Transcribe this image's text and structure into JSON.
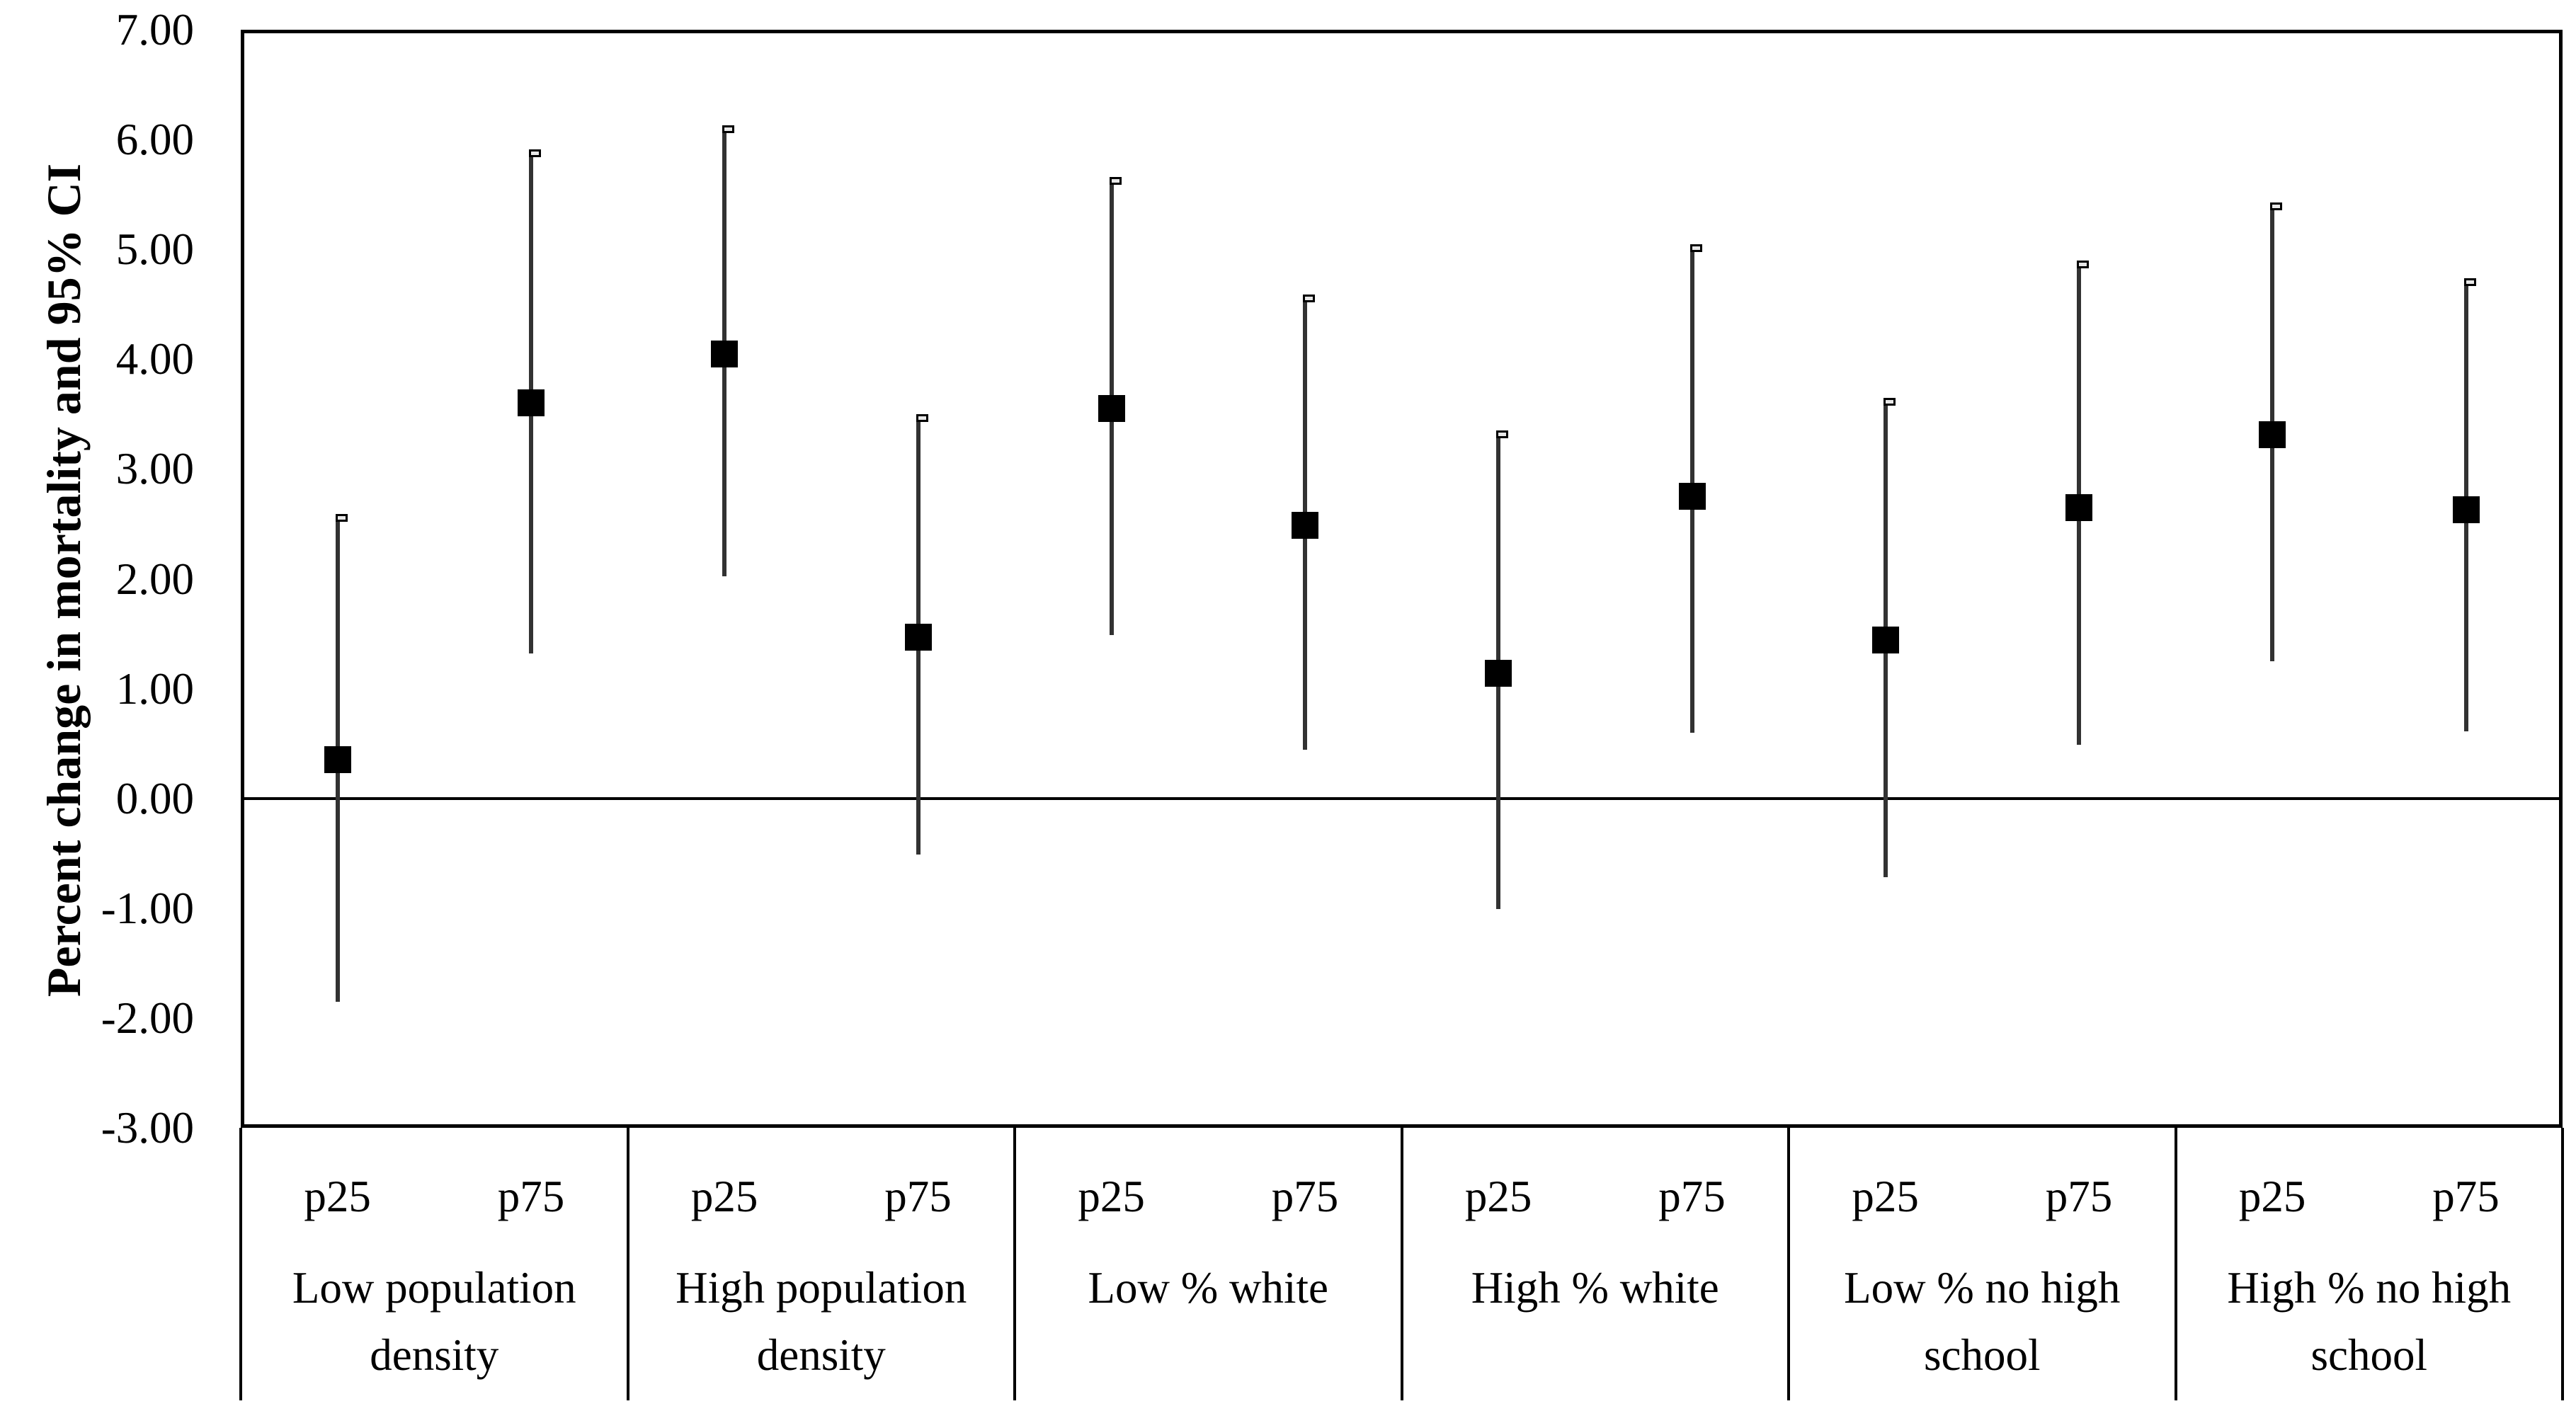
{
  "figure": {
    "background_color": "#ffffff",
    "text_color": "#000000"
  },
  "chart_data": {
    "type": "scatter",
    "subtype": "point-estimates-with-95ci-error-bars",
    "title": "",
    "xlabel": "",
    "ylabel": "Percent change in mortality and 95% CI",
    "ylim": [
      -3.0,
      7.0
    ],
    "ytick_labels": [
      "7.00",
      "6.00",
      "5.00",
      "4.00",
      "3.00",
      "2.00",
      "1.00",
      "0.00",
      "-1.00",
      "-2.00",
      "-3.00"
    ],
    "ytick_values": [
      7,
      6,
      5,
      4,
      3,
      2,
      1,
      0,
      -1,
      -2,
      -3
    ],
    "grid": false,
    "legend": false,
    "zero_reference_line": 0.0,
    "marker_style": "filled-black-square",
    "colors": {
      "marker": "#000000",
      "error_bar": "#323232",
      "frame": "#000000",
      "text": "#000000",
      "background": "#ffffff"
    },
    "groups": [
      {
        "label": "Low population density",
        "points": [
          {
            "x_label": "p25",
            "value": 0.35,
            "ci_low": -1.85,
            "ci_high": 2.57
          },
          {
            "x_label": "p75",
            "value": 3.6,
            "ci_low": 1.32,
            "ci_high": 5.89
          }
        ]
      },
      {
        "label": "High population density",
        "points": [
          {
            "x_label": "p25",
            "value": 4.05,
            "ci_low": 2.02,
            "ci_high": 6.11
          },
          {
            "x_label": "p75",
            "value": 1.47,
            "ci_low": -0.51,
            "ci_high": 3.48
          }
        ]
      },
      {
        "label": "Low % white",
        "points": [
          {
            "x_label": "p25",
            "value": 3.55,
            "ci_low": 1.49,
            "ci_high": 5.64
          },
          {
            "x_label": "p75",
            "value": 2.49,
            "ci_low": 0.44,
            "ci_high": 4.57
          }
        ]
      },
      {
        "label": "High % white",
        "points": [
          {
            "x_label": "p25",
            "value": 1.14,
            "ci_low": -1.01,
            "ci_high": 3.33
          },
          {
            "x_label": "p75",
            "value": 2.75,
            "ci_low": 0.6,
            "ci_high": 5.03
          }
        ]
      },
      {
        "label": "Low % no high school",
        "points": [
          {
            "x_label": "p25",
            "value": 1.44,
            "ci_low": -0.72,
            "ci_high": 3.63
          },
          {
            "x_label": "p75",
            "value": 2.65,
            "ci_low": 0.49,
            "ci_high": 4.88
          }
        ]
      },
      {
        "label": "High % no high school",
        "points": [
          {
            "x_label": "p25",
            "value": 3.31,
            "ci_low": 1.25,
            "ci_high": 5.41
          },
          {
            "x_label": "p75",
            "value": 2.63,
            "ci_low": 0.61,
            "ci_high": 4.72
          }
        ]
      }
    ]
  }
}
